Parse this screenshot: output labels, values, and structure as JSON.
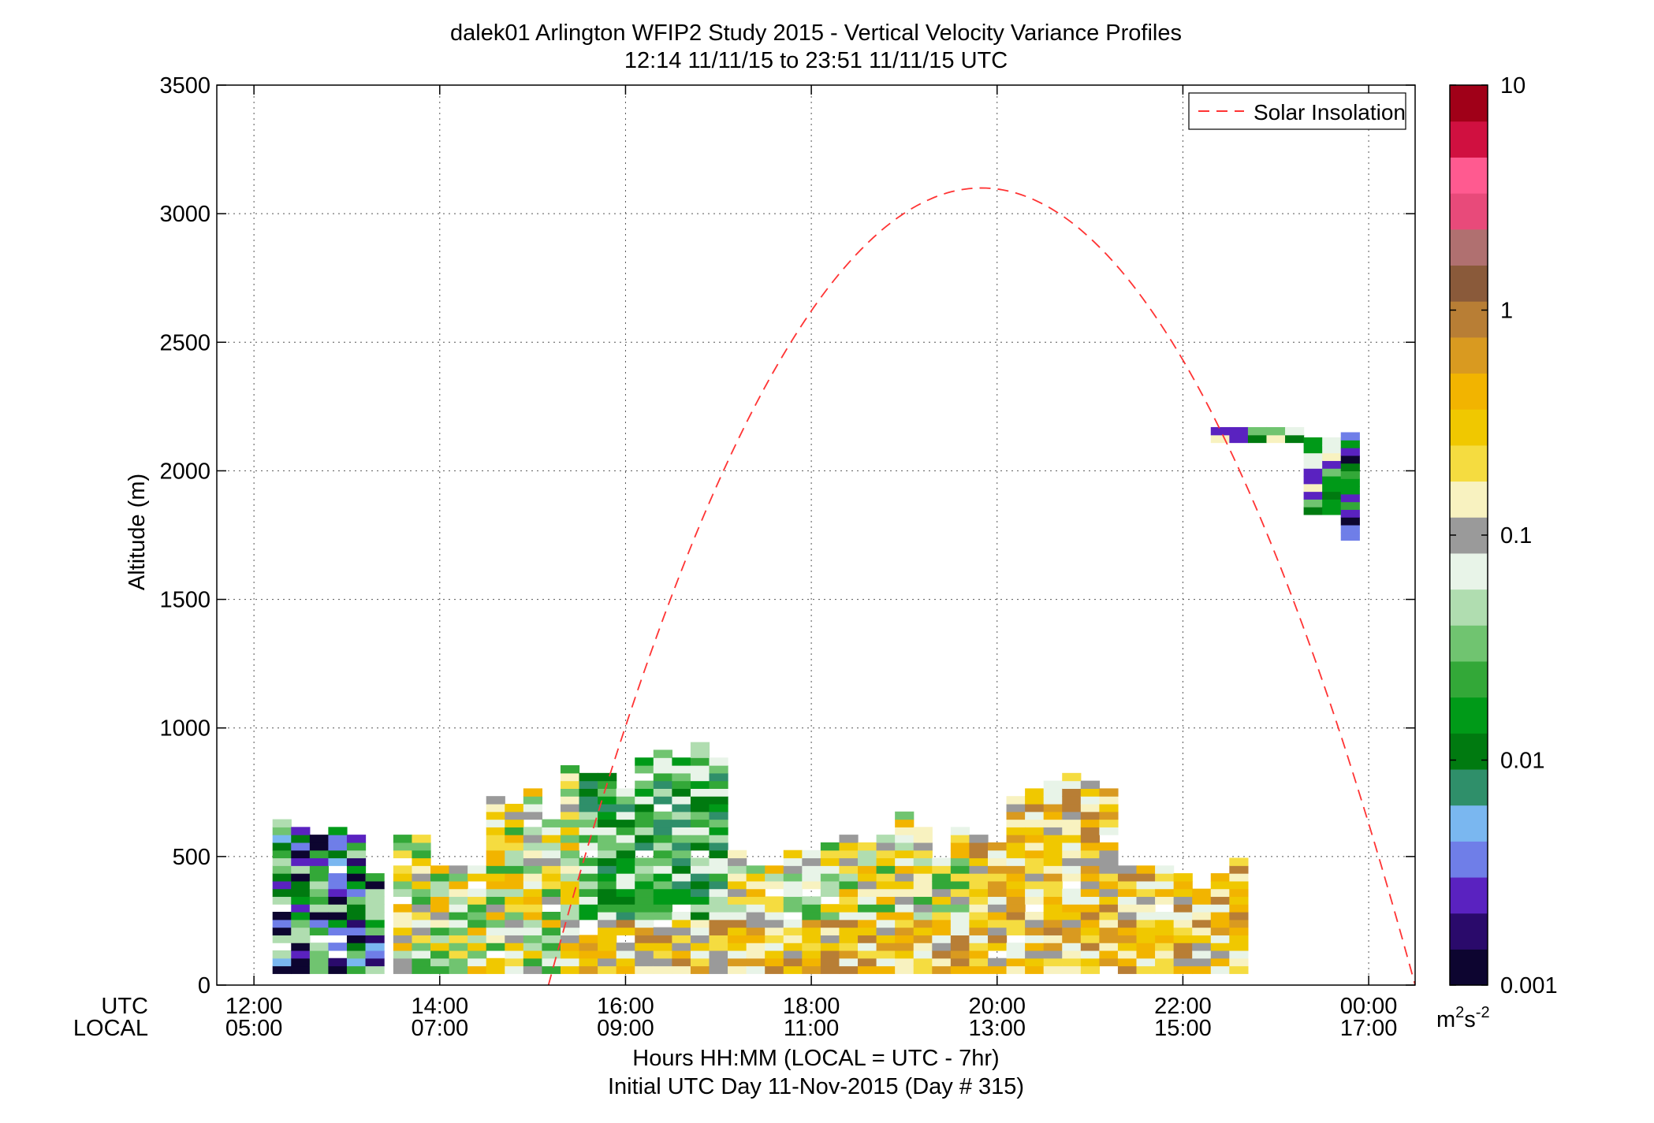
{
  "chart_data": {
    "type": "heatmap",
    "title": "dalek01 Arlington WFIP2 Study 2015 - Vertical Velocity Variance Profiles",
    "subtitle": "12:14 11/11/15 to 23:51 11/11/15  UTC",
    "ylabel": "Altitude (m)",
    "xlabel": "Hours HH:MM  (LOCAL = UTC - 7hr)",
    "xlabel2": "Initial UTC Day 11-Nov-2015 (Day # 315)",
    "utc_row_label": "UTC",
    "local_row_label": "LOCAL",
    "xlim": [
      11.6,
      24.5
    ],
    "ylim": [
      0,
      3500
    ],
    "grid": true,
    "x_ticks": [
      {
        "value": 12,
        "utc": "12:00",
        "local": "05:00"
      },
      {
        "value": 14,
        "utc": "14:00",
        "local": "07:00"
      },
      {
        "value": 16,
        "utc": "16:00",
        "local": "09:00"
      },
      {
        "value": 18,
        "utc": "18:00",
        "local": "11:00"
      },
      {
        "value": 20,
        "utc": "20:00",
        "local": "13:00"
      },
      {
        "value": 22,
        "utc": "22:00",
        "local": "15:00"
      },
      {
        "value": 24,
        "utc": "00:00",
        "local": "17:00"
      }
    ],
    "y_ticks": [
      0,
      500,
      1000,
      1500,
      2000,
      2500,
      3000,
      3500
    ],
    "legend": {
      "position": "top-right",
      "entries": [
        "Solar Insolation"
      ]
    },
    "solar_insolation": {
      "color": "#ff3333",
      "style": "dashed",
      "x_start_hours": 15.17,
      "x_peak_hours": 19.83,
      "x_end_hours": 24.5,
      "peak_altitude_m": 3100
    },
    "colorbar": {
      "scale": "log",
      "min": 0.001,
      "max": 10,
      "tick_labels": [
        "10",
        "1",
        "0.1",
        "0.01",
        "0.001"
      ],
      "tick_values": [
        10,
        1,
        0.1,
        0.01,
        0.001
      ],
      "unit": "m2s-2",
      "colors": [
        "#0d0530",
        "#2a0a6b",
        "#5a22c0",
        "#6f7ee8",
        "#7ab7f0",
        "#2f8f6a",
        "#007a10",
        "#009a18",
        "#33a838",
        "#70c470",
        "#b0ddb0",
        "#e8f4e8",
        "#9a9a9a",
        "#f8f2c0",
        "#f5dc40",
        "#f0c800",
        "#f2b400",
        "#d99a20",
        "#b87e35",
        "#8a5a3a",
        "#b07070",
        "#e84a7a",
        "#ff5a90",
        "#d01040",
        "#a00018"
      ]
    },
    "variance_profile_tops": [
      {
        "time": 12.3,
        "top_m": 645
      },
      {
        "time": 12.5,
        "top_m": 590
      },
      {
        "time": 12.7,
        "top_m": 560
      },
      {
        "time": 12.9,
        "top_m": 600
      },
      {
        "time": 13.1,
        "top_m": 580
      },
      {
        "time": 13.3,
        "top_m": 410
      },
      {
        "time": 13.6,
        "top_m": 560
      },
      {
        "time": 13.8,
        "top_m": 570
      },
      {
        "time": 14.0,
        "top_m": 450
      },
      {
        "time": 14.2,
        "top_m": 450
      },
      {
        "time": 14.4,
        "top_m": 450
      },
      {
        "time": 14.6,
        "top_m": 720
      },
      {
        "time": 14.8,
        "top_m": 680
      },
      {
        "time": 15.0,
        "top_m": 750
      },
      {
        "time": 15.2,
        "top_m": 640
      },
      {
        "time": 15.4,
        "top_m": 830
      },
      {
        "time": 15.6,
        "top_m": 820
      },
      {
        "time": 15.8,
        "top_m": 800
      },
      {
        "time": 16.0,
        "top_m": 740
      },
      {
        "time": 16.2,
        "top_m": 860
      },
      {
        "time": 16.4,
        "top_m": 900
      },
      {
        "time": 16.6,
        "top_m": 880
      },
      {
        "time": 16.8,
        "top_m": 940
      },
      {
        "time": 17.0,
        "top_m": 880
      },
      {
        "time": 17.2,
        "top_m": 520
      },
      {
        "time": 17.4,
        "top_m": 450
      },
      {
        "time": 17.6,
        "top_m": 450
      },
      {
        "time": 17.8,
        "top_m": 520
      },
      {
        "time": 18.0,
        "top_m": 510
      },
      {
        "time": 18.2,
        "top_m": 540
      },
      {
        "time": 18.4,
        "top_m": 580
      },
      {
        "time": 18.6,
        "top_m": 540
      },
      {
        "time": 18.8,
        "top_m": 560
      },
      {
        "time": 19.0,
        "top_m": 670
      },
      {
        "time": 19.2,
        "top_m": 590
      },
      {
        "time": 19.4,
        "top_m": 470
      },
      {
        "time": 19.6,
        "top_m": 590
      },
      {
        "time": 19.8,
        "top_m": 620
      },
      {
        "time": 20.0,
        "top_m": 580
      },
      {
        "time": 20.2,
        "top_m": 710
      },
      {
        "time": 20.4,
        "top_m": 740
      },
      {
        "time": 20.6,
        "top_m": 790
      },
      {
        "time": 20.8,
        "top_m": 820
      },
      {
        "time": 21.0,
        "top_m": 770
      },
      {
        "time": 21.2,
        "top_m": 760
      },
      {
        "time": 21.4,
        "top_m": 440
      },
      {
        "time": 21.6,
        "top_m": 440
      },
      {
        "time": 21.8,
        "top_m": 450
      },
      {
        "time": 22.0,
        "top_m": 410
      },
      {
        "time": 22.2,
        "top_m": 370
      },
      {
        "time": 22.4,
        "top_m": 420
      },
      {
        "time": 22.6,
        "top_m": 480
      }
    ],
    "upper_layer": {
      "x_start": 22.4,
      "x_end": 23.8,
      "top_m": 2150,
      "bottom_m": 1730
    }
  }
}
